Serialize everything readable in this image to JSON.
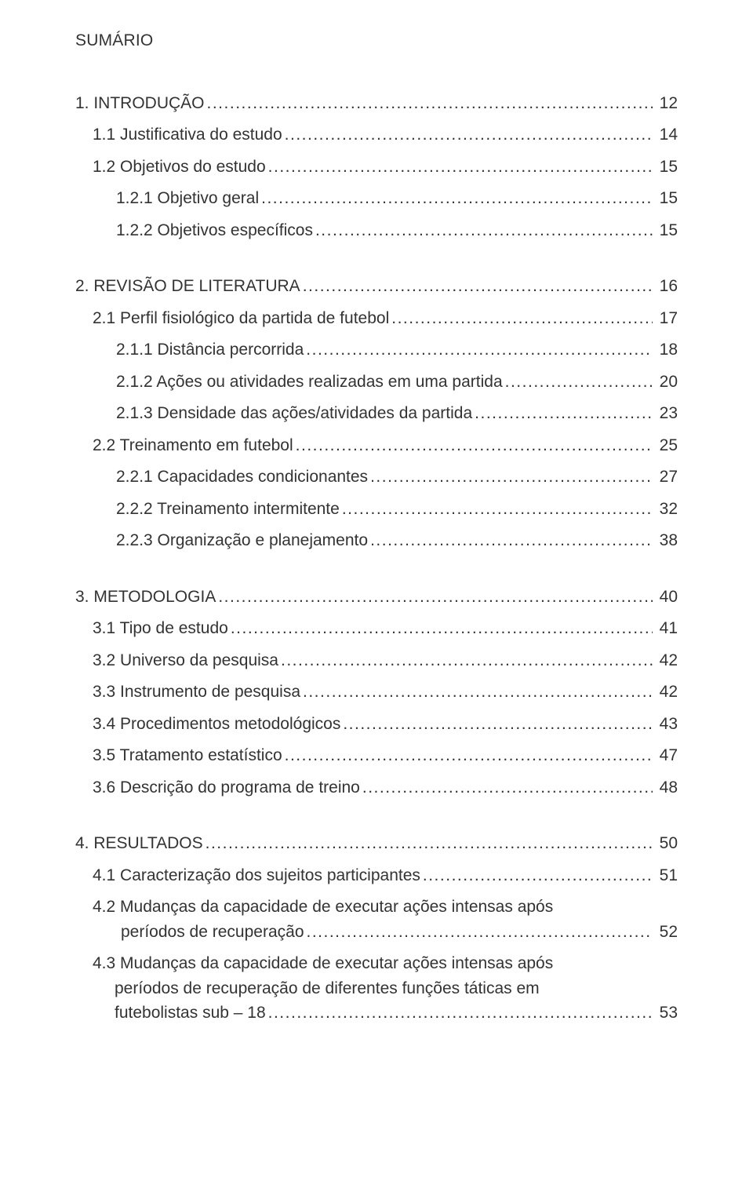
{
  "title": "SUMÁRIO",
  "colors": {
    "text": "#333333",
    "background": "#ffffff"
  },
  "typography": {
    "font_family": "Arial",
    "body_fontsize_pt": 16,
    "line_height": 1.5
  },
  "sections": [
    {
      "entries": [
        {
          "label": "1. INTRODUÇÃO",
          "page": "12",
          "indent": 0
        },
        {
          "label": "1.1 Justificativa do estudo",
          "page": "14",
          "indent": 1
        },
        {
          "label": "1.2 Objetivos do estudo",
          "page": "15",
          "indent": 1
        },
        {
          "label": "1.2.1 Objetivo geral",
          "page": "15",
          "indent": 2
        },
        {
          "label": "1.2.2 Objetivos específicos",
          "page": "15",
          "indent": 2
        }
      ]
    },
    {
      "entries": [
        {
          "label": "2. REVISÃO DE LITERATURA",
          "page": "16",
          "indent": 0
        },
        {
          "label": "2.1 Perfil fisiológico da partida de futebol",
          "page": "17",
          "indent": 1
        },
        {
          "label": "2.1.1 Distância percorrida",
          "page": "18",
          "indent": 2
        },
        {
          "label": "2.1.2 Ações ou atividades realizadas em uma partida",
          "page": "20",
          "indent": 2
        },
        {
          "label": "2.1.3 Densidade das ações/atividades da partida",
          "page": "23",
          "indent": 2
        },
        {
          "label": "2.2 Treinamento em futebol",
          "page": "25",
          "indent": 1
        },
        {
          "label": "2.2.1 Capacidades condicionantes",
          "page": "27",
          "indent": 2
        },
        {
          "label": "2.2.2 Treinamento intermitente",
          "page": "32",
          "indent": 2
        },
        {
          "label": "2.2.3 Organização e planejamento",
          "page": "38",
          "indent": 2
        }
      ]
    },
    {
      "entries": [
        {
          "label": "3. METODOLOGIA",
          "page": "40",
          "indent": 0
        },
        {
          "label": "3.1 Tipo de estudo",
          "page": "41",
          "indent": 1
        },
        {
          "label": "3.2 Universo da pesquisa",
          "page": "42",
          "indent": 1
        },
        {
          "label": "3.3 Instrumento de pesquisa",
          "page": "42",
          "indent": 1
        },
        {
          "label": "3.4 Procedimentos metodológicos",
          "page": "43",
          "indent": 1
        },
        {
          "label": "3.5 Tratamento estatístico",
          "page": "47",
          "indent": 1
        },
        {
          "label": "3.6 Descrição do programa de treino",
          "page": "48",
          "indent": 1
        }
      ]
    },
    {
      "entries": [
        {
          "label": "4. RESULTADOS",
          "page": "50",
          "indent": 0
        },
        {
          "label": "4.1 Caracterização dos sujeitos participantes",
          "page": "51",
          "indent": 1
        },
        {
          "wrap": true,
          "line1": "4.2 Mudanças da capacidade de executar ações intensas após",
          "line2": "períodos de recuperação",
          "page": "52",
          "indent": 1
        },
        {
          "wrap3": true,
          "line1": "4.3 Mudanças da capacidade de executar ações intensas após",
          "line2": "períodos de recuperação de diferentes funções táticas em",
          "line3": "futebolistas sub – 18",
          "page": "53",
          "indent": 1
        }
      ]
    }
  ]
}
